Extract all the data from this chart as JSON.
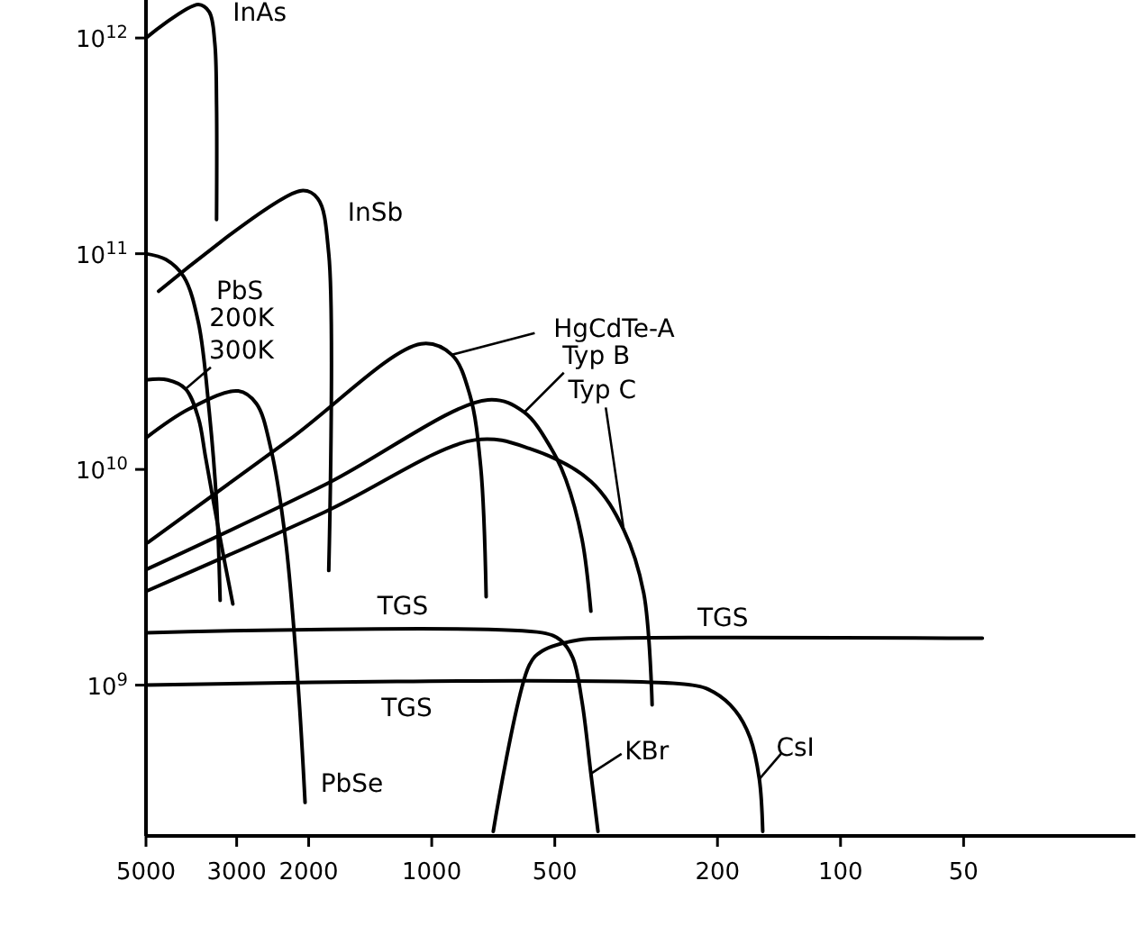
{
  "chart_data": {
    "type": "line",
    "log": "xy",
    "xlim": [
      5000,
      19
    ],
    "ylim": [
      200000000.0,
      1500000000000.0
    ],
    "xticks": [
      5000,
      3000,
      2000,
      1000,
      500,
      200,
      100,
      50
    ],
    "yticks": [
      {
        "value": 1000000000.0,
        "label": "10$^{9}$"
      },
      {
        "value": 10000000000.0,
        "label": "10$^{10}$"
      },
      {
        "value": 100000000000.0,
        "label": "10$^{11}$"
      },
      {
        "value": 1000000000000.0,
        "label": "10$^{12}$"
      }
    ],
    "grid": false,
    "marker": "none",
    "line_style": "solid",
    "series": [
      {
        "color": "#000000",
        "x": [
          5000,
          3722,
          3500,
          3394,
          3360,
          3360
        ],
        "values": [
          1000000000000.0,
          1430000000000.0,
          1320000000000.0,
          950000000000.0,
          490000000000.0,
          144000000000.0
        ]
      },
      {
        "color": "#000000",
        "x": [
          4655,
          2083,
          1900,
          1786,
          1786
        ],
        "values": [
          67000000000.0,
          196000000000.0,
          180000000000.0,
          100000000000.0,
          3400000000.0
        ]
      },
      {
        "color": "#000000",
        "x": [
          5000,
          4472,
          4038,
          3722,
          3500,
          3360,
          3293
        ],
        "values": [
          100000000000.0,
          94000000000.0,
          78000000000.0,
          48000000000.0,
          18400000000.0,
          7000000000.0,
          2470000000.0
        ]
      },
      {
        "color": "#000000",
        "x": [
          5000,
          4425,
          4000,
          3722,
          3572,
          3293,
          3066
        ],
        "values": [
          26000000000.0,
          26000000000.0,
          23600000000.0,
          17300000000.0,
          11300000000.0,
          4800000000.0,
          2380000000.0
        ]
      },
      {
        "color": "#000000",
        "x": [
          5000,
          3915,
          2973,
          2685,
          2475,
          2281,
          2124,
          2041
        ],
        "values": [
          14000000000.0,
          19100000000.0,
          23100000000.0,
          20200000000.0,
          12500000000.0,
          4800000000.0,
          1020000000.0,
          286000000.0
        ]
      },
      {
        "color": "#000000",
        "x": [
          4950,
          2235,
          1062,
          893,
          807,
          759,
          736
        ],
        "values": [
          4580000000.0,
          13700000000.0,
          38200000000.0,
          34000000000.0,
          22200000000.0,
          10300000000.0,
          2570000000.0
        ]
      },
      {
        "color": "#000000",
        "x": [
          5000,
          1823,
          729,
          594,
          510,
          470,
          429,
          408
        ],
        "values": [
          3430000000.0,
          8500000000.0,
          21000000000.0,
          18400000000.0,
          12500000000.0,
          9000000000.0,
          4760000000.0,
          2200000000.0
        ]
      },
      {
        "color": "#000000",
        "x": [
          5000,
          1823,
          784,
          577,
          408,
          339,
          303,
          289
        ],
        "values": [
          2720000000.0,
          6360000000.0,
          13700000000.0,
          12500000000.0,
          8800000000.0,
          5240000000.0,
          2670000000.0,
          810000000.0
        ]
      },
      {
        "color": "#000000",
        "x": [
          5000,
          537,
          485,
          452,
          429,
          408,
          392
        ],
        "values": [
          1750000000.0,
          1750000000.0,
          1620000000.0,
          1340000000.0,
          840000000.0,
          389000000.0,
          210000000.0
        ]
      },
      {
        "color": "#000000",
        "x": [
          707,
          577,
          537,
          438,
          357,
          45
        ],
        "values": [
          210000000.0,
          1240000000.0,
          1440000000.0,
          1620000000.0,
          1650000000.0,
          1650000000.0
        ]
      },
      {
        "color": "#000000",
        "x": [
          5000,
          230,
          204,
          181,
          166.5,
          158,
          155
        ],
        "values": [
          1000000000.0,
          1000000000.0,
          926000000.0,
          763000000.0,
          572000000.0,
          367000000.0,
          210000000.0
        ]
      }
    ],
    "annotations": [
      {
        "text": "InAs",
        "x": 3722,
        "y": 1430000000000.0
      },
      {
        "text": "InSb",
        "x": 1900,
        "y": 180000000000.0
      },
      {
        "text": "PbS",
        "x": 3722,
        "y": 48000000000.0
      },
      {
        "text": "200K",
        "x": 3722,
        "y": 48000000000.0
      },
      {
        "text": "300K",
        "x": 4000,
        "y": 23600000000.0
      },
      {
        "text": "HgCdTe-A",
        "x": 893,
        "y": 34000000000.0
      },
      {
        "text": "Typ B",
        "x": 594,
        "y": 18400000000.0
      },
      {
        "text": "Typ C",
        "x": 339,
        "y": 5240000000.0
      },
      {
        "text": "TGS",
        "x": 1177,
        "y": 1750000000.0
      },
      {
        "text": "TGS",
        "x": 194,
        "y": 1650000000.0
      },
      {
        "text": "TGS",
        "x": 1150,
        "y": 1000000000.0
      },
      {
        "text": "KBr",
        "x": 408,
        "y": 389000000.0
      },
      {
        "text": "CsI",
        "x": 158,
        "y": 367000000.0
      },
      {
        "text": "PbSe",
        "x": 2041,
        "y": 286000000.0
      }
    ]
  }
}
